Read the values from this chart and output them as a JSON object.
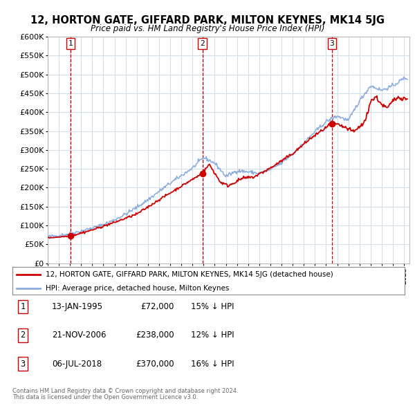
{
  "title": "12, HORTON GATE, GIFFARD PARK, MILTON KEYNES, MK14 5JG",
  "subtitle": "Price paid vs. HM Land Registry's House Price Index (HPI)",
  "ylim": [
    0,
    600000
  ],
  "yticks": [
    0,
    50000,
    100000,
    150000,
    200000,
    250000,
    300000,
    350000,
    400000,
    450000,
    500000,
    550000,
    600000
  ],
  "ytick_labels": [
    "£0",
    "£50K",
    "£100K",
    "£150K",
    "£200K",
    "£250K",
    "£300K",
    "£350K",
    "£400K",
    "£450K",
    "£500K",
    "£550K",
    "£600K"
  ],
  "xlim": [
    1993,
    2025.5
  ],
  "xticks": [
    1993,
    1994,
    1995,
    1996,
    1997,
    1998,
    1999,
    2000,
    2001,
    2002,
    2003,
    2004,
    2005,
    2006,
    2007,
    2008,
    2009,
    2010,
    2011,
    2012,
    2013,
    2014,
    2015,
    2016,
    2017,
    2018,
    2019,
    2020,
    2021,
    2022,
    2023,
    2024,
    2025
  ],
  "sale_color": "#cc0000",
  "hpi_color": "#88aadd",
  "sale_label": "12, HORTON GATE, GIFFARD PARK, MILTON KEYNES, MK14 5JG (detached house)",
  "hpi_label": "HPI: Average price, detached house, Milton Keynes",
  "transactions": [
    {
      "num": 1,
      "date_label": "13-JAN-1995",
      "date_x": 1995.04,
      "price": 72000,
      "pct": "15%",
      "direction": "↓"
    },
    {
      "num": 2,
      "date_label": "21-NOV-2006",
      "date_x": 2006.89,
      "price": 238000,
      "pct": "12%",
      "direction": "↓"
    },
    {
      "num": 3,
      "date_label": "06-JUL-2018",
      "date_x": 2018.51,
      "price": 370000,
      "pct": "16%",
      "direction": "↓"
    }
  ],
  "footer_line1": "Contains HM Land Registry data © Crown copyright and database right 2024.",
  "footer_line2": "This data is licensed under the Open Government Licence v3.0.",
  "background_color": "#ffffff",
  "grid_color": "#d0dde8",
  "vline_color": "#cc0000"
}
